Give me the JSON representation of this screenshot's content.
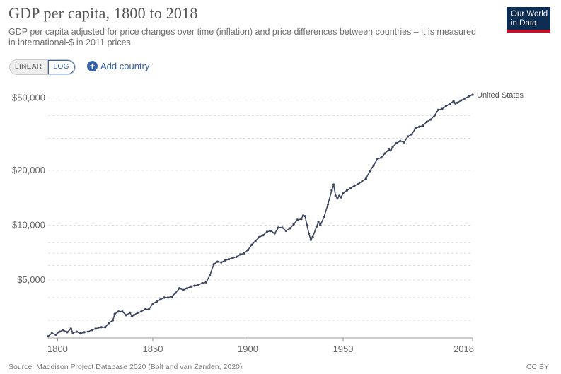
{
  "header": {
    "title": "GDP per capita, 1800 to 2018",
    "subtitle": "GDP per capita adjusted for price changes over time (inflation) and price differences between countries – it is measured in international-$ in 2011 prices.",
    "logo_line1": "Our World",
    "logo_line2": "in Data"
  },
  "controls": {
    "linear_label": "LINEAR",
    "log_label": "LOG",
    "add_country_label": "Add country",
    "selected_scale": "LOG"
  },
  "footer": {
    "source": "Source: Maddison Project Database 2020 (Bolt and van Zanden, 2020)",
    "license": "CC BY"
  },
  "colors": {
    "series": "#3d4560",
    "grid": "#dddddd",
    "accent": "#3360a9",
    "logo_bg": "#0d2d52",
    "logo_bar": "#c8102e"
  },
  "chart_data": {
    "type": "line",
    "title": "GDP per capita, 1800 to 2018",
    "xlabel": "",
    "ylabel": "",
    "yscale": "log",
    "xlim": [
      1795,
      2018
    ],
    "ylim": [
      2400,
      60000
    ],
    "x_ticks": [
      {
        "value": 1800,
        "label": "1800"
      },
      {
        "value": 1850,
        "label": "1850"
      },
      {
        "value": 1900,
        "label": "1900"
      },
      {
        "value": 1950,
        "label": "1950"
      },
      {
        "value": 2018,
        "label": "2018"
      }
    ],
    "y_ticks": [
      {
        "value": 5000,
        "label": "$5,000"
      },
      {
        "value": 10000,
        "label": "$10,000"
      },
      {
        "value": 20000,
        "label": "$20,000"
      },
      {
        "value": 50000,
        "label": "$50,000"
      }
    ],
    "y_grid": [
      3000,
      4000,
      5000,
      6000,
      7000,
      8000,
      10000,
      20000,
      30000,
      40000,
      50000
    ],
    "grid": true,
    "series": [
      {
        "name": "United States",
        "x": [
          1795,
          1797,
          1799,
          1801,
          1803,
          1805,
          1807,
          1808,
          1810,
          1812,
          1814,
          1816,
          1818,
          1820,
          1823,
          1825,
          1827,
          1829,
          1830,
          1832,
          1834,
          1836,
          1838,
          1839,
          1840,
          1842,
          1844,
          1846,
          1848,
          1850,
          1852,
          1854,
          1856,
          1858,
          1860,
          1862,
          1864,
          1866,
          1868,
          1870,
          1872,
          1874,
          1876,
          1878,
          1880,
          1882,
          1884,
          1886,
          1888,
          1890,
          1892,
          1894,
          1896,
          1898,
          1900,
          1902,
          1904,
          1906,
          1908,
          1910,
          1912,
          1914,
          1916,
          1918,
          1920,
          1922,
          1924,
          1926,
          1928,
          1929,
          1930,
          1931,
          1932,
          1933,
          1934,
          1936,
          1937,
          1938,
          1940,
          1942,
          1944,
          1945,
          1946,
          1947,
          1948,
          1949,
          1950,
          1952,
          1954,
          1956,
          1958,
          1960,
          1962,
          1964,
          1966,
          1968,
          1970,
          1972,
          1974,
          1975,
          1976,
          1978,
          1980,
          1982,
          1984,
          1986,
          1988,
          1990,
          1992,
          1994,
          1996,
          1998,
          2000,
          2002,
          2004,
          2006,
          2008,
          2009,
          2010,
          2012,
          2014,
          2016,
          2018
        ],
        "values": [
          2450,
          2550,
          2500,
          2600,
          2650,
          2580,
          2700,
          2560,
          2600,
          2540,
          2580,
          2600,
          2650,
          2700,
          2750,
          2750,
          2900,
          3000,
          3250,
          3350,
          3350,
          3200,
          3300,
          3150,
          3200,
          3300,
          3350,
          3450,
          3450,
          3700,
          3800,
          3900,
          4000,
          4000,
          4050,
          4250,
          4500,
          4400,
          4500,
          4600,
          4650,
          4700,
          4800,
          4850,
          5300,
          6100,
          6300,
          6250,
          6400,
          6500,
          6600,
          6700,
          6900,
          7000,
          7300,
          7800,
          8200,
          8600,
          8800,
          9200,
          9300,
          9000,
          9700,
          9700,
          9300,
          9600,
          10100,
          10700,
          10800,
          11300,
          11200,
          10000,
          9000,
          8300,
          8600,
          9800,
          10400,
          10000,
          11100,
          13000,
          15500,
          16700,
          14500,
          14000,
          14500,
          14200,
          15000,
          15500,
          16000,
          16500,
          16800,
          17400,
          18000,
          19800,
          21300,
          23000,
          23500,
          24800,
          26000,
          25700,
          26800,
          28200,
          29000,
          28500,
          30700,
          31500,
          34000,
          34700,
          35200,
          37000,
          38000,
          40000,
          43000,
          43500,
          45000,
          46300,
          48000,
          46600,
          47000,
          48500,
          49500,
          51000,
          52000
        ]
      }
    ]
  }
}
